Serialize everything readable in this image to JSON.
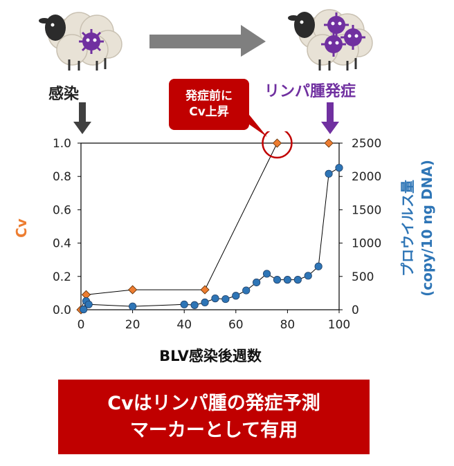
{
  "labels": {
    "infection": "感染",
    "onset": "リンパ腫発症",
    "callout_line1": "発症前に",
    "callout_line2": "Cv上昇"
  },
  "conclusion": {
    "line1": "Cvはリンパ腫の発症予測",
    "line2": "マーカーとして有用"
  },
  "colors": {
    "cv_series": "#ed7d31",
    "provirus_series": "#2e75b6",
    "callout": "#c00000",
    "onset_arrow": "#7030a0"
  },
  "icons": [
    "sheep-infected-icon",
    "sheep-lymphoma-icon",
    "progression-arrow-icon",
    "down-arrow-icon"
  ],
  "chart_data": {
    "type": "line",
    "xlabel": "BLV感染後週数",
    "ylabel_left": "Cv",
    "ylabel_right": "プロウイルス量 (copy/10 ng DNA)",
    "xlim": [
      0,
      100
    ],
    "ylim_left": [
      0,
      1.0
    ],
    "ylim_right": [
      0,
      2500
    ],
    "x_ticks": [
      "0",
      "20",
      "40",
      "60",
      "80",
      "100"
    ],
    "y_ticks_left": [
      "0.0",
      "0.2",
      "0.4",
      "0.6",
      "0.8",
      "1.0"
    ],
    "y_ticks_right": [
      "0",
      "500",
      "1000",
      "1500",
      "2000",
      "2500"
    ],
    "grid": false,
    "series": [
      {
        "name": "Cv",
        "axis": "left",
        "marker": "diamond",
        "x": [
          0,
          2,
          20,
          48,
          76,
          96
        ],
        "y": [
          0.0,
          0.09,
          0.12,
          0.12,
          1.0,
          1.0
        ]
      },
      {
        "name": "プロウイルス量",
        "axis": "right",
        "marker": "circle",
        "x": [
          1,
          2,
          3,
          20,
          40,
          44,
          48,
          52,
          56,
          60,
          64,
          68,
          72,
          76,
          80,
          84,
          88,
          92,
          96,
          100
        ],
        "y": [
          5,
          130,
          80,
          50,
          80,
          70,
          110,
          170,
          160,
          210,
          290,
          410,
          540,
          450,
          450,
          450,
          510,
          650,
          2040,
          2130
        ]
      }
    ],
    "highlight": {
      "series": "Cv",
      "x": 76,
      "y": 1.0
    }
  }
}
